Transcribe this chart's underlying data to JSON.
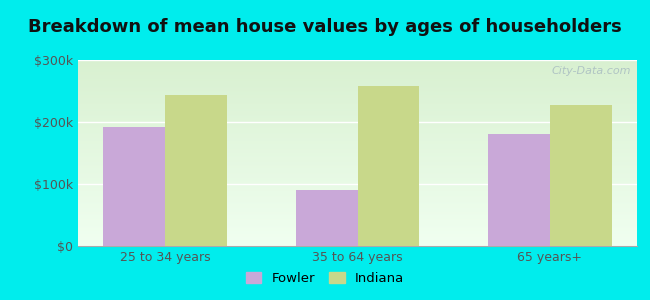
{
  "title": "Breakdown of mean house values by ages of householders",
  "categories": [
    "25 to 34 years",
    "35 to 64 years",
    "65 years+"
  ],
  "fowler_values": [
    192000,
    90000,
    180000
  ],
  "indiana_values": [
    243000,
    258000,
    228000
  ],
  "fowler_color": "#c9a8d8",
  "indiana_color": "#c8d88a",
  "ylim": [
    0,
    300000
  ],
  "yticks": [
    0,
    100000,
    200000,
    300000
  ],
  "ytick_labels": [
    "$0",
    "$100k",
    "$200k",
    "$300k"
  ],
  "bar_width": 0.32,
  "background_color": "#00eded",
  "plot_bg_top": "#d8f0d0",
  "plot_bg_bottom": "#f0fff0",
  "legend_labels": [
    "Fowler",
    "Indiana"
  ],
  "title_fontsize": 13,
  "tick_fontsize": 9,
  "legend_fontsize": 9.5,
  "watermark": "City-Data.com",
  "watermark_fontsize": 8,
  "grid_color": "#ffffff",
  "tick_color": "#555555",
  "spine_color": "#aaaaaa"
}
